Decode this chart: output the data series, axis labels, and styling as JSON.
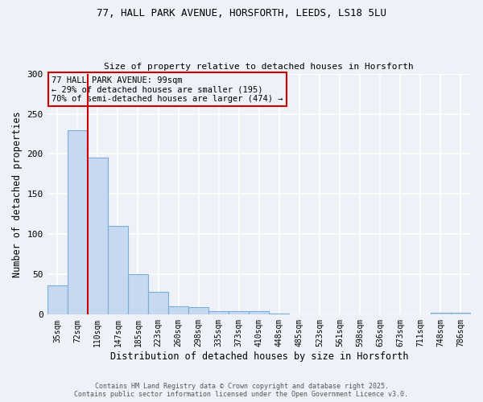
{
  "title1": "77, HALL PARK AVENUE, HORSFORTH, LEEDS, LS18 5LU",
  "title2": "Size of property relative to detached houses in Horsforth",
  "xlabel": "Distribution of detached houses by size in Horsforth",
  "ylabel": "Number of detached properties",
  "categories": [
    "35sqm",
    "72sqm",
    "110sqm",
    "147sqm",
    "185sqm",
    "223sqm",
    "260sqm",
    "298sqm",
    "335sqm",
    "373sqm",
    "410sqm",
    "448sqm",
    "485sqm",
    "523sqm",
    "561sqm",
    "598sqm",
    "636sqm",
    "673sqm",
    "711sqm",
    "748sqm",
    "786sqm"
  ],
  "values": [
    36,
    230,
    195,
    110,
    50,
    28,
    10,
    9,
    4,
    4,
    4,
    1,
    0,
    0,
    0,
    0,
    0,
    0,
    0,
    2,
    2
  ],
  "bar_color": "#c6d9f0",
  "bar_edgecolor": "#7aaedc",
  "redline_x": 1.5,
  "annotation_title": "77 HALL PARK AVENUE: 99sqm",
  "annotation_line1": "← 29% of detached houses are smaller (195)",
  "annotation_line2": "70% of semi-detached houses are larger (474) →",
  "redline_color": "#cc0000",
  "footer1": "Contains HM Land Registry data © Crown copyright and database right 2025.",
  "footer2": "Contains public sector information licensed under the Open Government Licence v3.0.",
  "background_color": "#eef2f8",
  "ylim": [
    0,
    300
  ],
  "yticks": [
    0,
    50,
    100,
    150,
    200,
    250,
    300
  ]
}
